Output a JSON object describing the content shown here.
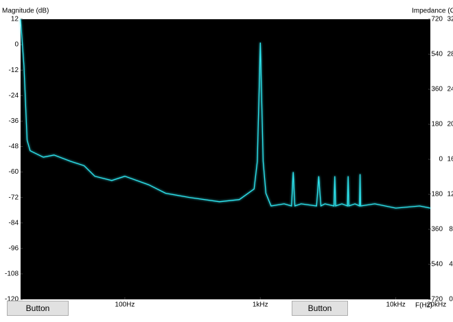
{
  "chart_data": {
    "type": "line",
    "y_axis_label": "Magnitude (dB)",
    "y2_axis_label": "Impedance (Oh",
    "x_axis_label": "F(Hz)",
    "log_x": true,
    "xlim": [
      17,
      18000
    ],
    "xticks": [
      {
        "value": 100,
        "label": "100Hz"
      },
      {
        "value": 1000,
        "label": "1kHz"
      },
      {
        "value": 10000,
        "label": "10kHz"
      },
      {
        "value": 20000,
        "label": "20kHz"
      }
    ],
    "ylim": [
      -120,
      12
    ],
    "yticks": [
      12,
      0,
      -12,
      -24,
      -36,
      -48,
      -60,
      -72,
      -84,
      -96,
      -108,
      -120
    ],
    "y2lim": [
      0,
      32
    ],
    "y2ticks": [
      32,
      28,
      24,
      20,
      16,
      12,
      8,
      4,
      0
    ],
    "phase_ticks": [
      720,
      540,
      360,
      180,
      0,
      -180,
      -360,
      -540,
      -720
    ],
    "series": [
      {
        "color": "#2ee6f0",
        "x": [
          17,
          18,
          19,
          20,
          25,
          30,
          40,
          50,
          60,
          80,
          100,
          150,
          200,
          300,
          500,
          700,
          900,
          950,
          1000,
          1050,
          1100,
          1200,
          1500,
          1700,
          1750,
          1800,
          2000,
          2600,
          2700,
          2800,
          3000,
          3500,
          3550,
          3600,
          4000,
          4400,
          4450,
          4500,
          5000,
          5400,
          5450,
          5500,
          7000,
          10000,
          15000,
          18000
        ],
        "values": [
          12,
          -10,
          -45,
          -50,
          -53,
          -52,
          -55,
          -57,
          -62,
          -64,
          -62,
          -66,
          -70,
          -72,
          -74,
          -73,
          -68,
          -55,
          1,
          -55,
          -70,
          -76,
          -75,
          -76,
          -60,
          -76,
          -75,
          -76,
          -62,
          -76,
          -75,
          -76,
          -62,
          -76,
          -75,
          -76,
          -62,
          -76,
          -75,
          -76,
          -61,
          -76,
          -75,
          -77,
          -76,
          -77
        ]
      }
    ]
  },
  "buttons": [
    "Button",
    "Button"
  ]
}
